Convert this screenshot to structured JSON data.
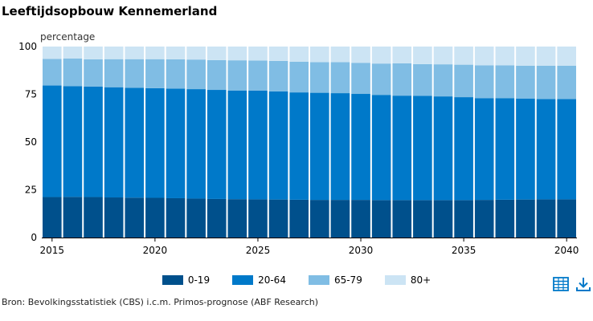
{
  "title": "Leeftijdsopbouw Kennemerland",
  "source": "Bron: Bevolkingsstatistiek (CBS) i.c.m. Primos-prognose (ABF Research)",
  "icons": {
    "table": "table-icon",
    "download": "download-icon"
  },
  "chart_data": {
    "type": "bar",
    "stacked": true,
    "title": "Leeftijdsopbouw Kennemerland",
    "ylabel": "percentage",
    "ylim": [
      0,
      100
    ],
    "yticks": [
      0,
      25,
      50,
      75,
      100
    ],
    "xticks": [
      "2015",
      "2020",
      "2025",
      "2030",
      "2035",
      "2040"
    ],
    "legend_position": "bottom",
    "grid": false,
    "categories": [
      "2015",
      "2016",
      "2017",
      "2018",
      "2019",
      "2020",
      "2021",
      "2022",
      "2023",
      "2024",
      "2025",
      "2026",
      "2027",
      "2028",
      "2029",
      "2030",
      "2031",
      "2032",
      "2033",
      "2034",
      "2035",
      "2036",
      "2037",
      "2038",
      "2039",
      "2040"
    ],
    "series": [
      {
        "name": "0-19",
        "color": "#00508c",
        "values": [
          21.2,
          21.3,
          21.2,
          21.0,
          20.9,
          20.8,
          20.6,
          20.4,
          20.2,
          20.1,
          20.0,
          19.9,
          19.8,
          19.7,
          19.7,
          19.7,
          19.6,
          19.6,
          19.6,
          19.6,
          19.6,
          19.7,
          19.8,
          19.9,
          20.0,
          20.0
        ]
      },
      {
        "name": "20-64",
        "color": "#0079c9",
        "values": [
          58.4,
          58.0,
          57.8,
          57.7,
          57.5,
          57.4,
          57.4,
          57.3,
          57.1,
          56.9,
          56.9,
          56.6,
          56.2,
          56.1,
          55.9,
          55.5,
          55.1,
          54.7,
          54.6,
          54.3,
          53.9,
          53.3,
          53.1,
          52.9,
          52.5,
          52.5
        ]
      },
      {
        "name": "65-79",
        "color": "#80bde4",
        "values": [
          13.9,
          14.4,
          14.3,
          14.7,
          15.0,
          15.2,
          15.3,
          15.5,
          15.6,
          15.8,
          15.8,
          16.0,
          16.1,
          16.0,
          16.2,
          16.3,
          16.4,
          16.9,
          16.6,
          16.8,
          17.0,
          17.2,
          17.3,
          17.2,
          17.5,
          17.5
        ]
      },
      {
        "name": "80+",
        "color": "#cce4f4",
        "values": [
          6.5,
          6.3,
          6.7,
          6.6,
          6.6,
          6.6,
          6.7,
          6.8,
          7.1,
          7.2,
          7.3,
          7.5,
          7.9,
          8.2,
          8.2,
          8.5,
          8.9,
          8.8,
          9.2,
          9.3,
          9.5,
          9.8,
          9.8,
          10.0,
          10.0,
          10.0
        ]
      }
    ]
  }
}
